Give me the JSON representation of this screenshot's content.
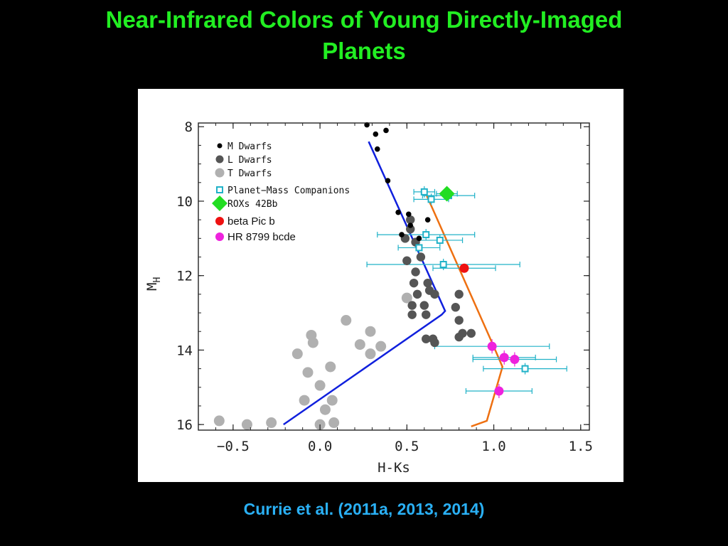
{
  "slide": {
    "title_line1": "Near-Infrared Colors of Young Directly-Imaged",
    "title_line2": "Planets",
    "citation": "Currie et al. (2011a, 2013, 2014)"
  },
  "colors": {
    "background": "#000000",
    "title": "#22ee22",
    "citation": "#2ab0f5",
    "m_dwarfs": "#000000",
    "l_dwarfs": "#555555",
    "t_dwarfs": "#b0b0b0",
    "planet_companions": "#20b2c8",
    "roxs42bb": "#22dd22",
    "beta_pic_b": "#ee1111",
    "hr8799": "#ee22dd",
    "blue_track": "#1020dd",
    "orange_track": "#ee7011"
  },
  "chart_data": {
    "type": "scatter",
    "xlabel": "H-Ks",
    "ylabel_main": "M",
    "ylabel_sub": "H",
    "xlim": [
      -0.7,
      1.55
    ],
    "ylim": [
      16.15,
      7.9
    ],
    "y_inverted": true,
    "x_ticks": [
      -0.5,
      0.0,
      0.5,
      1.0,
      1.5
    ],
    "x_tick_labels": [
      "−0.5",
      "0.0",
      "0.5",
      "1.0",
      "1.5"
    ],
    "y_ticks": [
      8,
      10,
      12,
      14,
      16
    ],
    "y_tick_labels": [
      "8",
      "10",
      "12",
      "14",
      "16"
    ],
    "legend_placement": "top-left",
    "legend": [
      {
        "label": "M Dwarfs",
        "marker": "dot-small"
      },
      {
        "label": "L Dwarfs",
        "marker": "dot-medium"
      },
      {
        "label": "T Dwarfs",
        "marker": "dot-large"
      },
      {
        "label": "Planet−Mass Companions",
        "marker": "square-open"
      },
      {
        "label": "ROXs 42Bb",
        "marker": "diamond"
      },
      {
        "label": "beta Pic b",
        "marker": "dot-red"
      },
      {
        "label": "HR 8799 bcde",
        "marker": "dot-magenta"
      }
    ],
    "series": [
      {
        "name": "M Dwarfs",
        "points": [
          [
            0.27,
            7.95
          ],
          [
            0.32,
            8.2
          ],
          [
            0.38,
            8.1
          ],
          [
            0.33,
            8.6
          ],
          [
            0.39,
            9.45
          ],
          [
            0.45,
            10.3
          ],
          [
            0.51,
            10.35
          ],
          [
            0.52,
            10.65
          ],
          [
            0.47,
            10.9
          ],
          [
            0.57,
            11.0
          ],
          [
            0.62,
            10.5
          ]
        ]
      },
      {
        "name": "L Dwarfs",
        "points": [
          [
            0.52,
            10.5
          ],
          [
            0.52,
            10.75
          ],
          [
            0.49,
            11.0
          ],
          [
            0.55,
            11.1
          ],
          [
            0.58,
            11.5
          ],
          [
            0.5,
            11.6
          ],
          [
            0.55,
            11.9
          ],
          [
            0.54,
            12.2
          ],
          [
            0.62,
            12.2
          ],
          [
            0.63,
            12.4
          ],
          [
            0.56,
            12.5
          ],
          [
            0.53,
            12.8
          ],
          [
            0.6,
            12.8
          ],
          [
            0.66,
            12.5
          ],
          [
            0.8,
            12.5
          ],
          [
            0.78,
            12.85
          ],
          [
            0.53,
            13.05
          ],
          [
            0.61,
            13.05
          ],
          [
            0.8,
            13.2
          ],
          [
            0.82,
            13.55
          ],
          [
            0.87,
            13.55
          ],
          [
            0.8,
            13.65
          ],
          [
            0.61,
            13.7
          ],
          [
            0.65,
            13.7
          ],
          [
            0.66,
            13.8
          ]
        ]
      },
      {
        "name": "T Dwarfs",
        "points": [
          [
            0.5,
            12.6
          ],
          [
            0.15,
            13.2
          ],
          [
            0.29,
            13.5
          ],
          [
            -0.05,
            13.6
          ],
          [
            -0.04,
            13.8
          ],
          [
            0.23,
            13.85
          ],
          [
            0.35,
            13.9
          ],
          [
            -0.13,
            14.1
          ],
          [
            0.29,
            14.1
          ],
          [
            -0.07,
            14.6
          ],
          [
            0.06,
            14.45
          ],
          [
            0.0,
            14.95
          ],
          [
            -0.09,
            15.35
          ],
          [
            0.07,
            15.35
          ],
          [
            0.03,
            15.6
          ],
          [
            -0.58,
            15.9
          ],
          [
            -0.42,
            16.0
          ],
          [
            -0.28,
            15.95
          ],
          [
            0.08,
            15.95
          ],
          [
            0.0,
            16.0
          ]
        ]
      },
      {
        "name": "Planet-Mass Companions",
        "points": [
          {
            "x": 0.6,
            "y": 9.75,
            "xerr": 0.06
          },
          {
            "x": 0.64,
            "y": 9.95,
            "xerr": 0.1
          },
          {
            "x": 0.74,
            "y": 9.85,
            "xerr": 0.15
          },
          {
            "x": 0.61,
            "y": 10.9,
            "xerr": 0.28
          },
          {
            "x": 0.69,
            "y": 11.05,
            "xerr": 0.13
          },
          {
            "x": 0.57,
            "y": 11.25,
            "xerr": 0.12
          },
          {
            "x": 0.71,
            "y": 11.7,
            "xerr": 0.44
          },
          {
            "x": 1.18,
            "y": 14.5,
            "xerr": 0.24
          }
        ]
      },
      {
        "name": "ROXs 42Bb",
        "points": [
          {
            "x": 0.73,
            "y": 9.8,
            "xerr": 0.06
          }
        ]
      },
      {
        "name": "beta Pic b",
        "points": [
          {
            "x": 0.83,
            "y": 11.8,
            "xerr": 0.18
          }
        ]
      },
      {
        "name": "HR 8799 bcde",
        "points": [
          {
            "x": 0.99,
            "y": 13.9,
            "xerr": 0.33
          },
          {
            "x": 1.06,
            "y": 14.2,
            "xerr": 0.18
          },
          {
            "x": 1.12,
            "y": 14.25,
            "xerr": 0.24
          },
          {
            "x": 1.03,
            "y": 15.1,
            "xerr": 0.19
          }
        ]
      }
    ],
    "lines": [
      {
        "color_key": "blue_track",
        "points": [
          [
            0.28,
            8.4
          ],
          [
            0.72,
            12.95
          ],
          [
            0.7,
            13.05
          ],
          [
            -0.21,
            16.0
          ]
        ]
      },
      {
        "color_key": "orange_track",
        "points": [
          [
            0.6,
            9.7
          ],
          [
            0.99,
            13.8
          ],
          [
            1.05,
            14.45
          ],
          [
            0.96,
            15.9
          ],
          [
            0.87,
            16.05
          ]
        ]
      }
    ]
  }
}
